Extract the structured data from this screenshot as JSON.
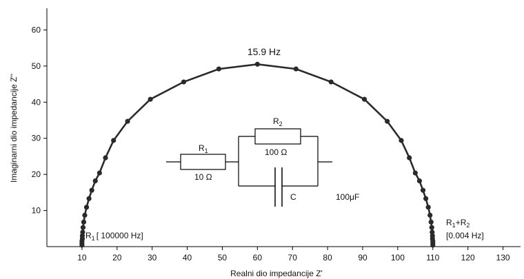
{
  "chart_data": {
    "type": "scatter",
    "title": "",
    "xlabel": "Realni dio impedancije Z'",
    "ylabel": "Imaginarni dio impedancije Z''",
    "xlim": [
      0,
      135
    ],
    "ylim": [
      0,
      66
    ],
    "x_ticks": [
      10,
      20,
      30,
      40,
      50,
      60,
      70,
      80,
      90,
      100,
      110,
      120,
      130
    ],
    "y_ticks": [
      10,
      20,
      30,
      40,
      50,
      60
    ],
    "grid": false,
    "series": [
      {
        "values": [
          {
            "x": 10.0,
            "y": 0.4
          },
          {
            "x": 10.0,
            "y": 0.9
          },
          {
            "x": 10.0,
            "y": 1.5
          },
          {
            "x": 10.1,
            "y": 2.2
          },
          {
            "x": 10.1,
            "y": 3.0
          },
          {
            "x": 10.2,
            "y": 4.0
          },
          {
            "x": 10.3,
            "y": 5.3
          },
          {
            "x": 10.5,
            "y": 6.8
          },
          {
            "x": 10.8,
            "y": 8.7
          },
          {
            "x": 11.3,
            "y": 10.9
          },
          {
            "x": 12.0,
            "y": 13.3
          },
          {
            "x": 12.8,
            "y": 15.6
          },
          {
            "x": 13.8,
            "y": 18.2
          },
          {
            "x": 15.0,
            "y": 20.4
          },
          {
            "x": 16.7,
            "y": 24.6
          },
          {
            "x": 19.0,
            "y": 29.4
          },
          {
            "x": 23.0,
            "y": 34.7
          },
          {
            "x": 29.5,
            "y": 40.8
          },
          {
            "x": 39.0,
            "y": 45.6
          },
          {
            "x": 49.0,
            "y": 49.2
          },
          {
            "x": 60.0,
            "y": 50.5
          },
          {
            "x": 71.0,
            "y": 49.2
          },
          {
            "x": 81.0,
            "y": 45.6
          },
          {
            "x": 90.5,
            "y": 40.8
          },
          {
            "x": 97.0,
            "y": 34.7
          },
          {
            "x": 101.0,
            "y": 29.4
          },
          {
            "x": 103.3,
            "y": 24.6
          },
          {
            "x": 105.0,
            "y": 20.4
          },
          {
            "x": 106.2,
            "y": 18.2
          },
          {
            "x": 107.2,
            "y": 15.6
          },
          {
            "x": 108.0,
            "y": 13.3
          },
          {
            "x": 108.7,
            "y": 10.9
          },
          {
            "x": 109.2,
            "y": 8.7
          },
          {
            "x": 109.5,
            "y": 6.8
          },
          {
            "x": 109.7,
            "y": 5.3
          },
          {
            "x": 109.8,
            "y": 4.0
          },
          {
            "x": 109.9,
            "y": 3.0
          },
          {
            "x": 109.9,
            "y": 2.2
          },
          {
            "x": 110.0,
            "y": 1.5
          },
          {
            "x": 110.0,
            "y": 0.9
          },
          {
            "x": 110.0,
            "y": 0.4
          }
        ]
      }
    ],
    "annotations": {
      "peak_freq": "15.9 Hz",
      "left_end": {
        "main": "R",
        "sub": "1",
        "rest": "[ 100000 Hz]"
      },
      "right_end": {
        "main1": "R",
        "sub1": "1",
        "plus": "+R",
        "sub2": "2",
        "freq": "[0.004 Hz]"
      }
    },
    "circuit": {
      "r1": {
        "main": "R",
        "sub": "1",
        "value": "10 Ω"
      },
      "r2": {
        "main": "R",
        "sub": "2",
        "value": "100 Ω"
      },
      "c": {
        "label": "C",
        "value": "100μF"
      }
    },
    "colors": {
      "line": "#2a2a2a",
      "marker": "#2a2a2a",
      "axis": "#000000"
    }
  }
}
